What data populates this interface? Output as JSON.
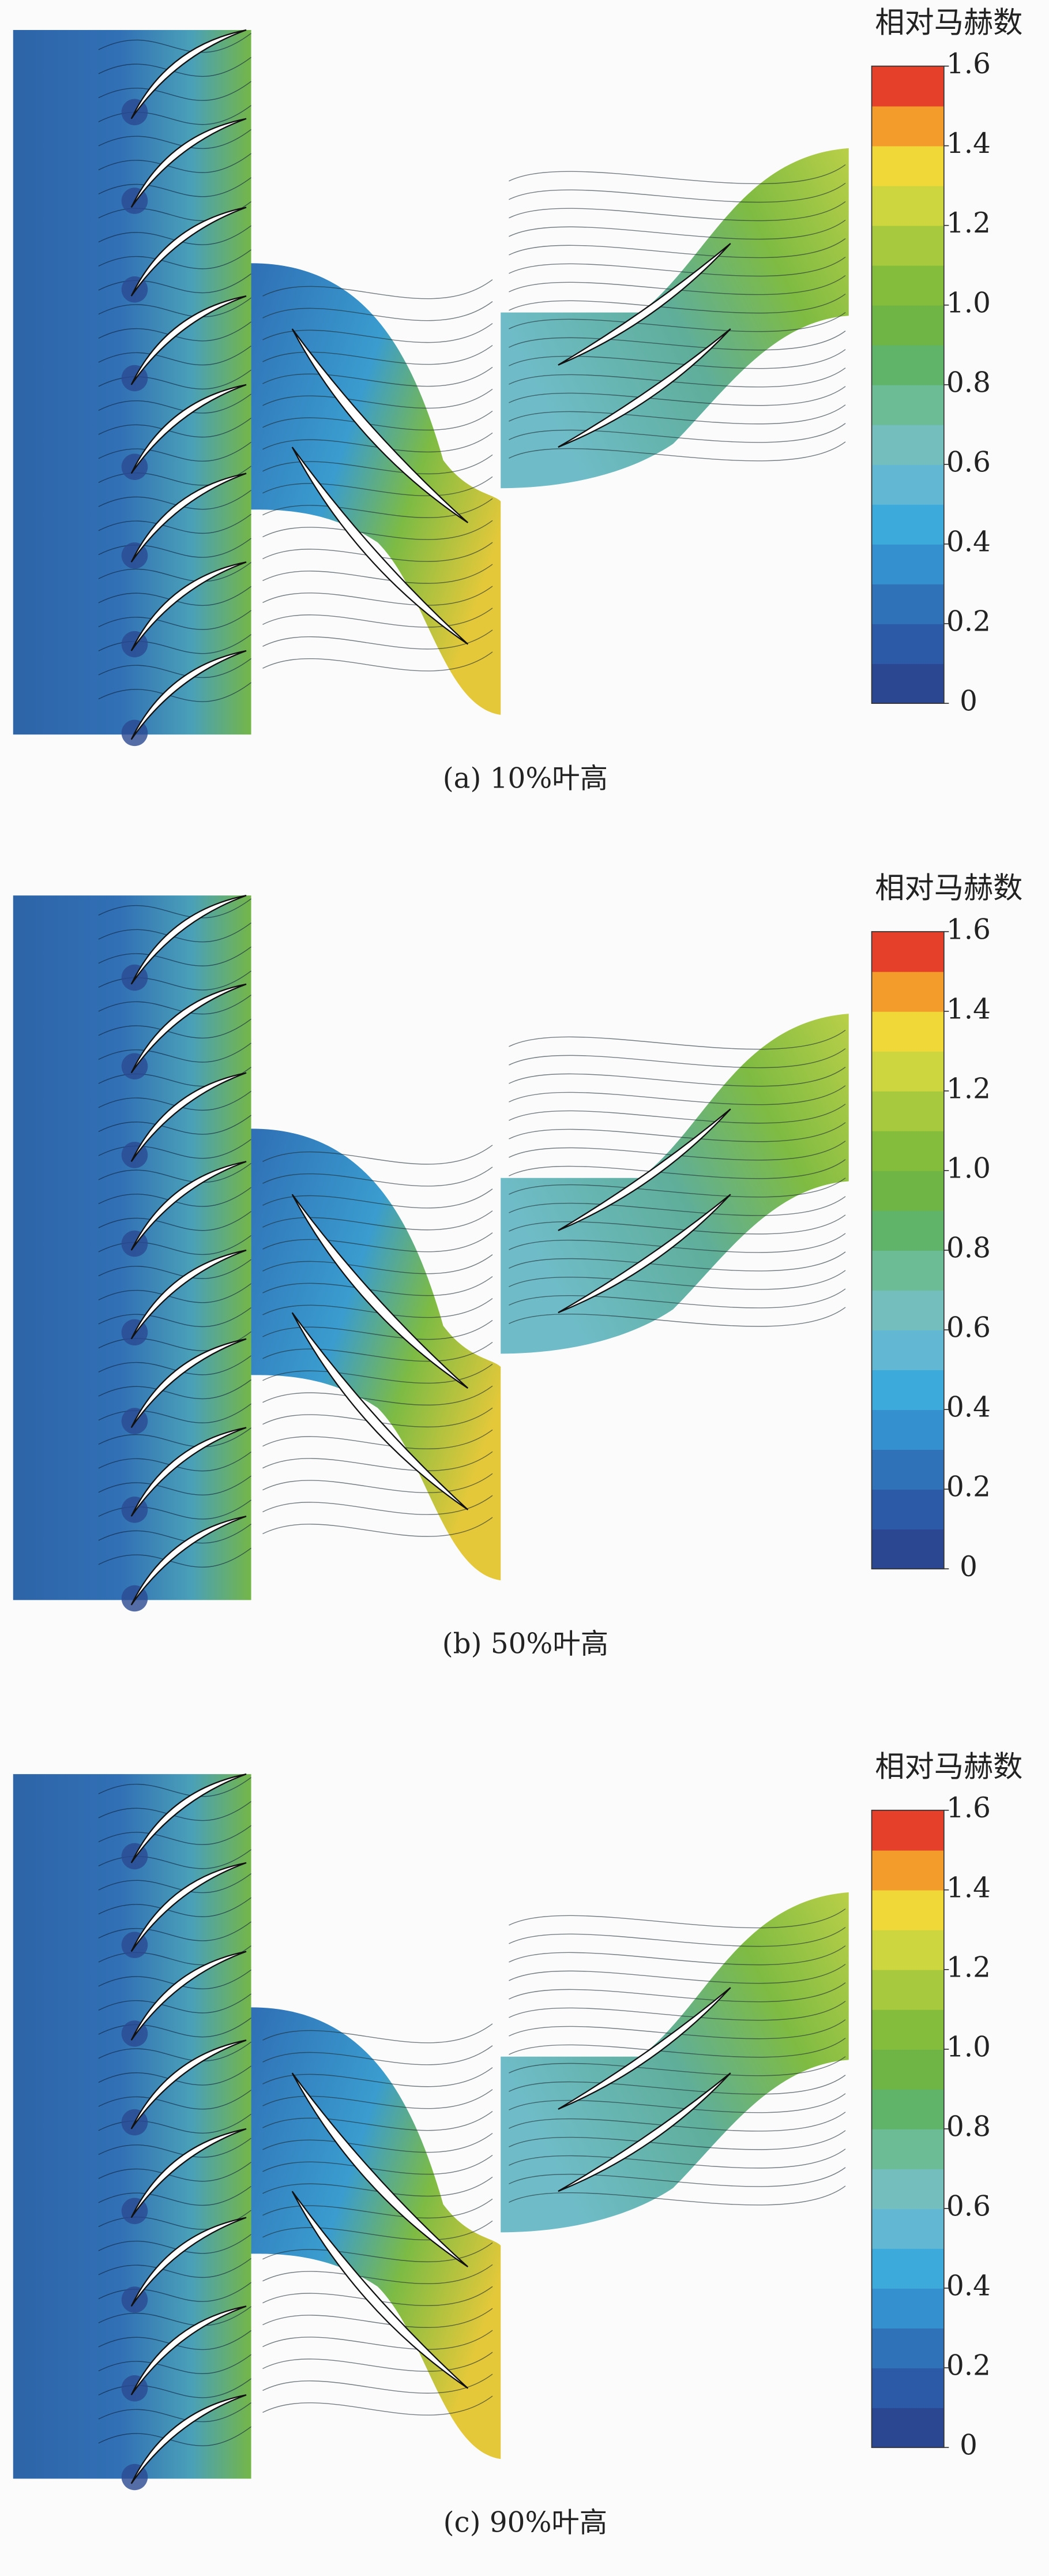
{
  "panels": [
    {
      "caption": "(a) 10%叶高",
      "colorbar": {
        "title": "相对马赫数",
        "lim": [
          0,
          1.6
        ],
        "ticks": [
          0,
          0.2,
          0.4,
          0.6,
          0.8,
          {
            "value": 1,
            "label": "1.0"
          },
          1.2,
          1.4,
          1.6
        ],
        "colors": [
          "#2b4792",
          "#2d5aa6",
          "#3072b8",
          "#3590cf",
          "#3daadc",
          "#62b8d2",
          "#74bfbd",
          "#6cbc95",
          "#5fb46a",
          "#6fb545",
          "#84bd3b",
          "#a6c93d",
          "#cdd63f",
          "#efd837",
          "#f39c2b",
          "#e5412a"
        ]
      }
    },
    {
      "caption": "(b) 50%叶高",
      "colorbar": {
        "title": "相对马赫数",
        "lim": [
          0,
          1.6
        ],
        "ticks": [
          0,
          0.2,
          0.4,
          0.6,
          0.8,
          {
            "value": 1,
            "label": "1.0"
          },
          1.2,
          1.4,
          1.6
        ],
        "colors": [
          "#2b4792",
          "#2d5aa6",
          "#3072b8",
          "#3590cf",
          "#3daadc",
          "#62b8d2",
          "#74bfbd",
          "#6cbc95",
          "#5fb46a",
          "#6fb545",
          "#84bd3b",
          "#a6c93d",
          "#cdd63f",
          "#efd837",
          "#f39c2b",
          "#e5412a"
        ]
      }
    },
    {
      "caption": "(c) 90%叶高",
      "colorbar": {
        "title": "相对马赫数",
        "lim": [
          0,
          1.6
        ],
        "ticks": [
          0,
          0.2,
          0.4,
          0.6,
          0.8,
          {
            "value": 1,
            "label": "1.0"
          },
          1.2,
          1.4,
          1.6
        ],
        "colors": [
          "#2b4792",
          "#2d5aa6",
          "#3072b8",
          "#3590cf",
          "#3daadc",
          "#62b8d2",
          "#74bfbd",
          "#6cbc95",
          "#5fb46a",
          "#6fb545",
          "#84bd3b",
          "#a6c93d",
          "#cdd63f",
          "#efd837",
          "#f39c2b",
          "#e5412a"
        ]
      }
    }
  ]
}
